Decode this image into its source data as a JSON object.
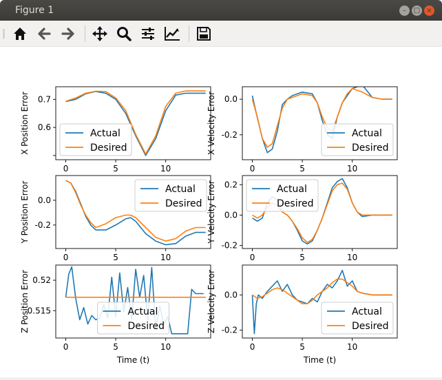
{
  "window": {
    "title": "Figure 1",
    "controls": {
      "minimize": "–",
      "maximize": "□",
      "close": "×"
    }
  },
  "toolbar": {
    "buttons": [
      {
        "name": "home-button",
        "icon": "home-icon",
        "tooltip": "Home"
      },
      {
        "name": "back-button",
        "icon": "arrow-left-icon",
        "tooltip": "Back"
      },
      {
        "name": "forward-button",
        "icon": "arrow-right-icon",
        "tooltip": "Forward"
      },
      {
        "name": "pan-button",
        "icon": "move-icon",
        "tooltip": "Pan"
      },
      {
        "name": "zoom-button",
        "icon": "magnifier-icon",
        "tooltip": "Zoom"
      },
      {
        "name": "subplots-button",
        "icon": "sliders-icon",
        "tooltip": "Subplots"
      },
      {
        "name": "axes-button",
        "icon": "line-chart-icon",
        "tooltip": "Customize"
      },
      {
        "name": "save-button",
        "icon": "floppy-disk-icon",
        "tooltip": "Save"
      }
    ]
  },
  "colors": {
    "actual": "#1f77b4",
    "desired": "#ff7f0e"
  },
  "chart_data": [
    {
      "type": "line",
      "id": "xpos",
      "ylabel": "X Position Error",
      "xlabel": "",
      "xlim": [
        -1,
        14.5
      ],
      "ylim": [
        0.485,
        0.745
      ],
      "xticks": [
        0,
        5,
        10
      ],
      "yticks": [
        0.5,
        0.6,
        0.7
      ],
      "yticklabels": [
        "",
        "0.6",
        "0.7"
      ],
      "legend": "lower-left",
      "series": [
        {
          "name": "Actual",
          "x": [
            0,
            1,
            2,
            3,
            4,
            5,
            6,
            7,
            8,
            9,
            10,
            11,
            12,
            13,
            14
          ],
          "y": [
            0.692,
            0.7,
            0.72,
            0.728,
            0.722,
            0.7,
            0.65,
            0.57,
            0.5,
            0.56,
            0.66,
            0.715,
            0.722,
            0.722,
            0.722
          ]
        },
        {
          "name": "Desired",
          "x": [
            0,
            1,
            2,
            3,
            4,
            5,
            6,
            7,
            8,
            9,
            10,
            11,
            12,
            13,
            14
          ],
          "y": [
            0.693,
            0.705,
            0.722,
            0.729,
            0.728,
            0.705,
            0.66,
            0.575,
            0.505,
            0.57,
            0.675,
            0.722,
            0.73,
            0.73,
            0.73
          ]
        }
      ]
    },
    {
      "type": "line",
      "id": "xvel",
      "ylabel": "X Velocity Error",
      "xlabel": "",
      "xlim": [
        -1,
        14.5
      ],
      "ylim": [
        -0.34,
        0.07
      ],
      "xticks": [
        0,
        5,
        10
      ],
      "yticks": [
        -0.2,
        0.0
      ],
      "legend": "lower-right",
      "series": [
        {
          "name": "Actual",
          "x": [
            0,
            0.4,
            1,
            1.5,
            2,
            2.5,
            3,
            3.5,
            4,
            5,
            6,
            6.5,
            7,
            7.5,
            8,
            8.5,
            9,
            9.5,
            10,
            11,
            12,
            13,
            14
          ],
          "y": [
            0.02,
            -0.08,
            -0.22,
            -0.3,
            -0.28,
            -0.18,
            -0.03,
            0.0,
            0.02,
            0.04,
            0.03,
            -0.02,
            -0.12,
            -0.2,
            -0.22,
            -0.1,
            -0.02,
            0.02,
            0.06,
            0.08,
            0.01,
            0.0,
            0.0
          ]
        },
        {
          "name": "Desired",
          "x": [
            0,
            0.5,
            1,
            1.5,
            2,
            2.5,
            3,
            3.5,
            4,
            5,
            6,
            6.5,
            7,
            7.5,
            8,
            8.5,
            9,
            9.5,
            10,
            11,
            12,
            13,
            14
          ],
          "y": [
            0.0,
            -0.1,
            -0.22,
            -0.27,
            -0.25,
            -0.15,
            -0.05,
            0.0,
            0.01,
            0.03,
            0.02,
            -0.02,
            -0.1,
            -0.16,
            -0.18,
            -0.1,
            -0.02,
            0.03,
            0.06,
            0.04,
            0.01,
            0.0,
            0.0
          ]
        }
      ]
    },
    {
      "type": "line",
      "id": "ypos",
      "ylabel": "Y Position Error",
      "xlabel": "",
      "xlim": [
        -1,
        14.5
      ],
      "ylim": [
        -0.39,
        0.2
      ],
      "xticks": [
        0,
        5,
        10
      ],
      "yticks": [
        -0.2,
        0.0
      ],
      "legend": "upper-right",
      "series": [
        {
          "name": "Actual",
          "x": [
            0,
            0.5,
            1,
            1.5,
            2,
            2.5,
            3,
            4,
            5,
            6,
            6.5,
            7,
            8,
            9,
            10,
            11,
            12,
            13,
            14
          ],
          "y": [
            0.16,
            0.14,
            0.07,
            -0.03,
            -0.13,
            -0.2,
            -0.24,
            -0.24,
            -0.2,
            -0.15,
            -0.14,
            -0.17,
            -0.27,
            -0.33,
            -0.36,
            -0.35,
            -0.29,
            -0.26,
            -0.26
          ]
        },
        {
          "name": "Desired",
          "x": [
            0,
            0.5,
            1,
            1.5,
            2,
            2.5,
            3,
            4,
            5,
            6,
            6.5,
            7,
            8,
            9,
            10,
            11,
            12,
            13,
            14
          ],
          "y": [
            0.16,
            0.14,
            0.06,
            -0.04,
            -0.12,
            -0.18,
            -0.22,
            -0.19,
            -0.14,
            -0.12,
            -0.12,
            -0.14,
            -0.22,
            -0.3,
            -0.33,
            -0.31,
            -0.25,
            -0.22,
            -0.22
          ]
        }
      ]
    },
    {
      "type": "line",
      "id": "yvel",
      "ylabel": "Y Velocity Error",
      "xlabel": "",
      "xlim": [
        -1,
        14.5
      ],
      "ylim": [
        -0.22,
        0.26
      ],
      "xticks": [
        0,
        5,
        10
      ],
      "yticks": [
        -0.2,
        0.0,
        0.2
      ],
      "legend": "upper-left",
      "series": [
        {
          "name": "Actual",
          "x": [
            0,
            0.5,
            1,
            1.5,
            2,
            2.5,
            3,
            3.5,
            4,
            4.5,
            5,
            5.5,
            6,
            6.5,
            7,
            7.5,
            8,
            8.5,
            9,
            9.5,
            10,
            10.5,
            11,
            12,
            13,
            14
          ],
          "y": [
            -0.02,
            -0.04,
            -0.02,
            0.08,
            0.12,
            0.1,
            0.02,
            0.0,
            -0.04,
            -0.1,
            -0.17,
            -0.19,
            -0.17,
            -0.1,
            -0.02,
            0.08,
            0.18,
            0.22,
            0.24,
            0.18,
            0.08,
            0.02,
            -0.01,
            0.0,
            0.0,
            0.0
          ]
        },
        {
          "name": "Desired",
          "x": [
            0,
            0.5,
            1,
            1.5,
            2,
            2.5,
            3,
            3.5,
            4,
            4.5,
            5,
            5.5,
            6,
            6.5,
            7,
            7.5,
            8,
            8.5,
            9,
            9.5,
            10,
            10.5,
            11,
            12,
            13,
            14
          ],
          "y": [
            0.0,
            -0.02,
            0.0,
            0.05,
            0.08,
            0.06,
            0.02,
            0.0,
            -0.04,
            -0.09,
            -0.15,
            -0.18,
            -0.16,
            -0.1,
            -0.02,
            0.07,
            0.16,
            0.2,
            0.21,
            0.17,
            0.08,
            0.02,
            0.0,
            0.0,
            0.0,
            0.0
          ]
        }
      ]
    },
    {
      "type": "line",
      "id": "zpos",
      "ylabel": "Z Position Error",
      "xlabel": "Time (t)",
      "xlim": [
        -1,
        14.5
      ],
      "ylim": [
        0.5105,
        0.5225
      ],
      "xticks": [
        0,
        5,
        10
      ],
      "yticks": [
        0.515,
        0.52
      ],
      "legend": "lower-center",
      "series": [
        {
          "name": "Actual",
          "x": [
            0,
            0.3,
            0.6,
            1,
            1.4,
            1.8,
            2.2,
            2.6,
            3,
            3.4,
            3.8,
            4.2,
            4.6,
            5,
            5.4,
            5.8,
            6.2,
            6.6,
            7,
            7.4,
            7.8,
            8.2,
            8.6,
            9,
            9.4,
            9.8,
            10.2,
            10.6,
            11,
            11.4,
            11.8,
            12.2,
            12.6,
            13,
            13.4,
            13.8
          ],
          "y": [
            0.5172,
            0.521,
            0.5222,
            0.517,
            0.5135,
            0.5155,
            0.5128,
            0.5142,
            0.5135,
            0.5138,
            0.516,
            0.5138,
            0.5205,
            0.514,
            0.5212,
            0.5148,
            0.5188,
            0.5135,
            0.5218,
            0.5172,
            0.5208,
            0.5135,
            0.5221,
            0.5118,
            0.5158,
            0.5128,
            0.514,
            0.5112,
            0.5112,
            0.5112,
            0.5112,
            0.5112,
            0.5185,
            0.5178,
            0.5178,
            0.5178
          ]
        },
        {
          "name": "Desired",
          "x": [
            0,
            14
          ],
          "y": [
            0.5172,
            0.5172
          ]
        }
      ]
    },
    {
      "type": "line",
      "id": "zvel",
      "ylabel": "Z Velocity Error",
      "xlabel": "Time (t)",
      "xlim": [
        -1,
        14.5
      ],
      "ylim": [
        -0.245,
        0.17
      ],
      "xticks": [
        0,
        5,
        10
      ],
      "yticks": [
        -0.2,
        0.0
      ],
      "legend": "lower-right",
      "series": [
        {
          "name": "Actual",
          "x": [
            0,
            0.2,
            0.4,
            0.6,
            1,
            1.5,
            2,
            2.5,
            3,
            3.5,
            4,
            4.5,
            5,
            5.5,
            6,
            6.5,
            7,
            7.5,
            8,
            8.5,
            9,
            9.5,
            10,
            10.5,
            11,
            12,
            13,
            14
          ],
          "y": [
            0.0,
            -0.22,
            -0.05,
            0.0,
            -0.02,
            0.02,
            0.05,
            0.08,
            0.02,
            0.06,
            0.0,
            -0.03,
            -0.04,
            -0.05,
            -0.02,
            -0.04,
            0.02,
            0.06,
            0.04,
            0.08,
            0.14,
            0.05,
            0.08,
            0.02,
            0.01,
            0.0,
            0.0,
            0.0
          ]
        },
        {
          "name": "Desired",
          "x": [
            0,
            0.5,
            1,
            1.5,
            2,
            2.5,
            3,
            3.5,
            4,
            4.5,
            5,
            5.5,
            6,
            6.5,
            7,
            7.5,
            8,
            8.5,
            9,
            9.5,
            10,
            10.5,
            11,
            12,
            13,
            14
          ],
          "y": [
            0.0,
            -0.02,
            -0.01,
            0.01,
            0.03,
            0.04,
            0.03,
            0.01,
            -0.01,
            -0.03,
            -0.05,
            -0.05,
            -0.03,
            0.0,
            0.02,
            0.04,
            0.07,
            0.09,
            0.09,
            0.07,
            0.05,
            0.02,
            0.01,
            0.0,
            0.0,
            0.0
          ]
        }
      ]
    }
  ]
}
